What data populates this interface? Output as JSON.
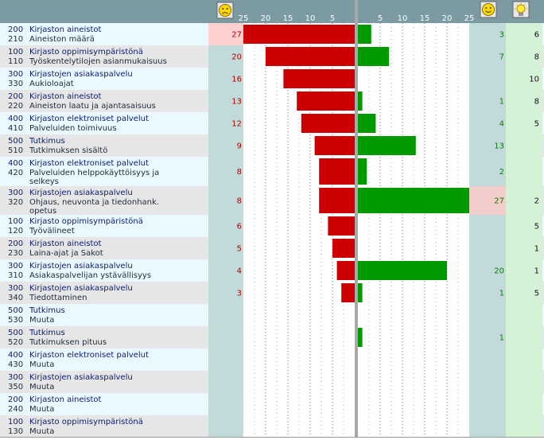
{
  "colors": {
    "header_bg": "#7b9aa1",
    "row_light": "#eaf8ff",
    "row_alt": "#e6e6e6",
    "neg_bar": "#cc0000",
    "pos_bar": "#009900",
    "neg_col_bg": "#c3dada",
    "neg_col_highlight": "#ffd0d0",
    "pos_col_bg": "#c3dada",
    "pos_col_highlight": "#f3cccc",
    "extra_col_bg": "#d6f2d6",
    "code_text": "#0b1d6b",
    "label_text": "#1f2b3a",
    "neg_num_text": "#b00000",
    "pos_num_text": "#0a7a0a",
    "tick_text": "#ffffff"
  },
  "header": {
    "sad_icon": "sad-face-icon",
    "happy_icon": "happy-face-icon",
    "idea_icon": "lightbulb-icon"
  },
  "chart_data": {
    "type": "bar",
    "title": "",
    "xlabel": "",
    "ylabel": "",
    "left_axis": {
      "direction": "reversed",
      "range": [
        0,
        25
      ],
      "ticks": [
        "25",
        "20",
        "15",
        "10",
        "5"
      ]
    },
    "right_axis": {
      "range": [
        0,
        25
      ],
      "ticks": [
        "5",
        "10",
        "15",
        "20",
        "25"
      ]
    },
    "series": [
      {
        "name": "negative",
        "icon": "sad-face-icon"
      },
      {
        "name": "positive",
        "icon": "happy-face-icon"
      },
      {
        "name": "suggestions",
        "icon": "lightbulb-icon"
      }
    ],
    "rows": [
      {
        "code1": "200",
        "cat": "Kirjaston aineistot",
        "code2": "210",
        "sub": "Aineiston määrä",
        "neg": 27,
        "pos": 3,
        "idea": 6,
        "neg_highlight": true
      },
      {
        "code1": "100",
        "cat": "Kirjasto oppimisympäristönä",
        "code2": "110",
        "sub": "Työskentelytilojen asianmukaisuus",
        "neg": 20,
        "pos": 7,
        "idea": 8
      },
      {
        "code1": "300",
        "cat": "Kirjastojen asiakaspalvelu",
        "code2": "330",
        "sub": "Aukioloajat",
        "neg": 16,
        "pos": null,
        "idea": 10
      },
      {
        "code1": "200",
        "cat": "Kirjaston aineistot",
        "code2": "220",
        "sub": "Aineiston laatu ja ajantasaisuus",
        "neg": 13,
        "pos": 1,
        "idea": 8
      },
      {
        "code1": "400",
        "cat": "Kirjaston elektroniset palvelut",
        "code2": "410",
        "sub": "Palveluiden toimivuus",
        "neg": 12,
        "pos": 4,
        "idea": 5
      },
      {
        "code1": "500",
        "cat": "Tutkimus",
        "code2": "510",
        "sub": "Tutkimuksen sisältö",
        "neg": 9,
        "pos": 13,
        "idea": null
      },
      {
        "code1": "400",
        "cat": "Kirjaston elektroniset palvelut",
        "code2": "420",
        "sub": "Palveluiden helppokäyttöisyys ja",
        "sub2": "selkeys",
        "neg": 8,
        "pos": 2,
        "idea": null
      },
      {
        "code1": "300",
        "cat": "Kirjastojen asiakaspalvelu",
        "code2": "320",
        "sub": "Ohjaus, neuvonta ja tiedonhank.",
        "sub2": "opetus",
        "neg": 8,
        "pos": 27,
        "idea": 2,
        "pos_highlight": true
      },
      {
        "code1": "100",
        "cat": "Kirjasto oppimisympäristönä",
        "code2": "120",
        "sub": "Työvälineet",
        "neg": 6,
        "pos": null,
        "idea": 5
      },
      {
        "code1": "200",
        "cat": "Kirjaston aineistot",
        "code2": "230",
        "sub": "Laina-ajat ja Sakot",
        "neg": 5,
        "pos": null,
        "idea": 1
      },
      {
        "code1": "300",
        "cat": "Kirjastojen asiakaspalvelu",
        "code2": "310",
        "sub": "Asiakaspalvelijan ystävällisyys",
        "neg": 4,
        "pos": 20,
        "idea": 1
      },
      {
        "code1": "300",
        "cat": "Kirjastojen asiakaspalvelu",
        "code2": "340",
        "sub": "Tiedottaminen",
        "neg": 3,
        "pos": 1,
        "idea": 5
      },
      {
        "code1": "500",
        "cat": "Tutkimus",
        "code2": "530",
        "sub": "Muuta",
        "neg": null,
        "pos": null,
        "idea": null
      },
      {
        "code1": "500",
        "cat": "Tutkimus",
        "code2": "520",
        "sub": "Tutkimuksen pituus",
        "neg": null,
        "pos": 1,
        "idea": null
      },
      {
        "code1": "400",
        "cat": "Kirjaston elektroniset palvelut",
        "code2": "430",
        "sub": "Muuta",
        "neg": null,
        "pos": null,
        "idea": null
      },
      {
        "code1": "300",
        "cat": "Kirjastojen asiakaspalvelu",
        "code2": "350",
        "sub": "Muuta",
        "neg": null,
        "pos": null,
        "idea": null
      },
      {
        "code1": "200",
        "cat": "Kirjaston aineistot",
        "code2": "240",
        "sub": "Muuta",
        "neg": null,
        "pos": null,
        "idea": null
      },
      {
        "code1": "100",
        "cat": "Kirjasto oppimisympäristönä",
        "code2": "130",
        "sub": "Muuta",
        "neg": null,
        "pos": null,
        "idea": null
      }
    ]
  }
}
